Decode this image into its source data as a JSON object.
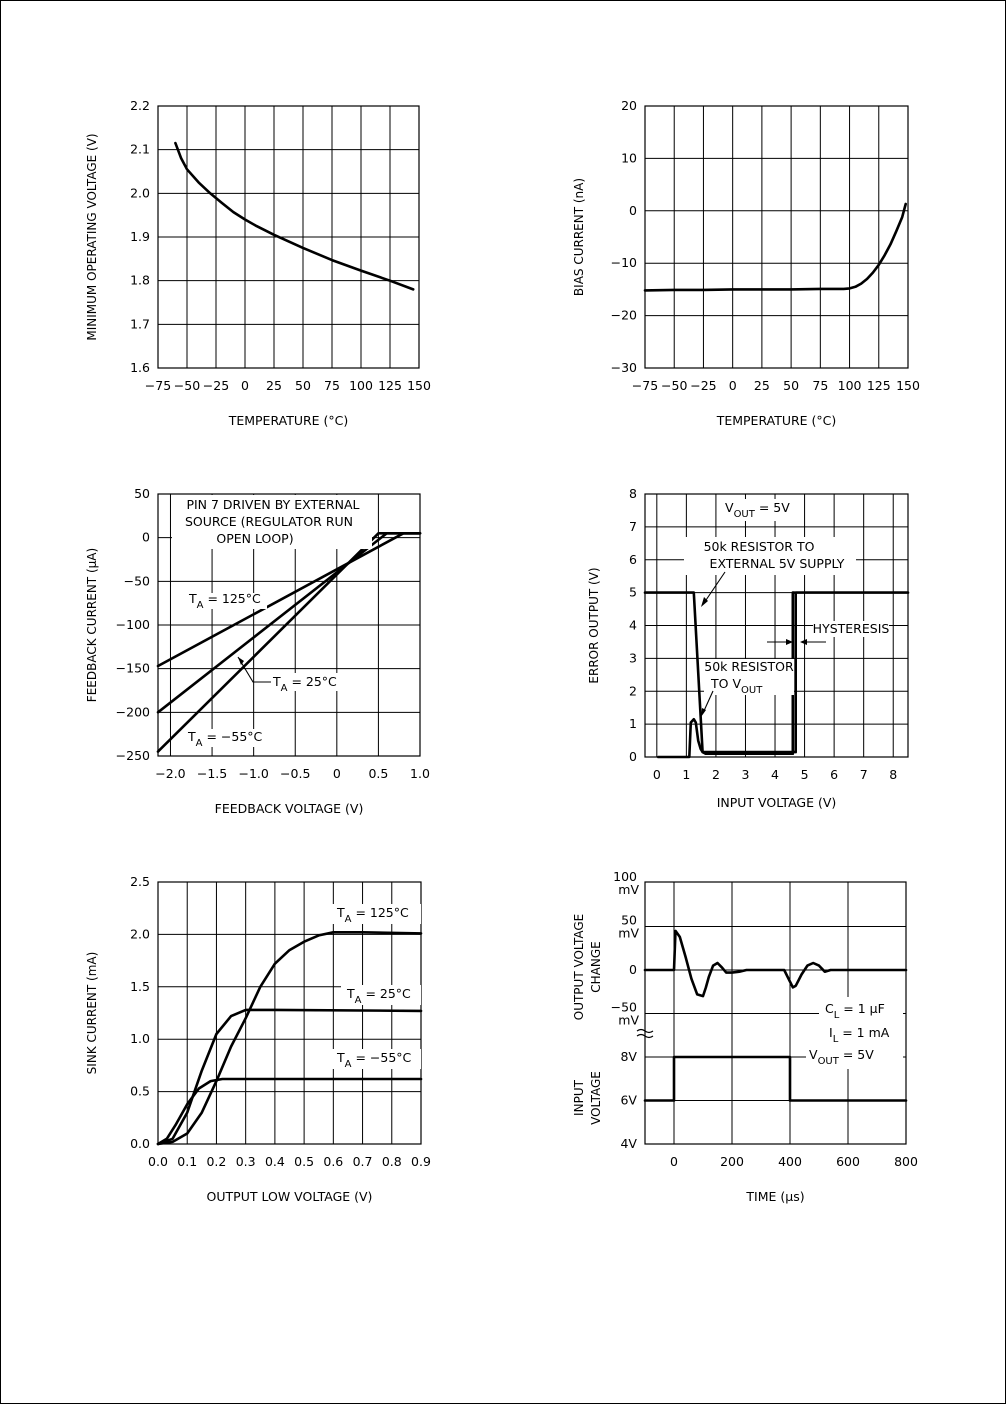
{
  "chart_data": [
    {
      "id": "c1",
      "type": "line",
      "title": "",
      "xlabel": "TEMPERATURE (°C)",
      "ylabel": "MINIMUM OPERATING VOLTAGE (V)",
      "xlim": [
        -75,
        150
      ],
      "ylim": [
        1.6,
        2.2
      ],
      "xticks": [
        -75,
        -50,
        -25,
        0,
        25,
        50,
        75,
        100,
        125,
        150
      ],
      "xtick_labels": [
        "−75",
        "−50",
        "−25",
        "0",
        "25",
        "50",
        "75",
        "100",
        "125",
        "150"
      ],
      "yticks": [
        1.6,
        1.7,
        1.8,
        1.9,
        2.0,
        2.1,
        2.2
      ],
      "ytick_labels": [
        "1.6",
        "1.7",
        "1.8",
        "1.9",
        "2.0",
        "2.1",
        "2.2"
      ],
      "grid": true,
      "series": [
        {
          "x": [
            -60,
            -55,
            -50,
            -40,
            -30,
            -20,
            -10,
            0,
            10,
            25,
            50,
            75,
            100,
            125,
            145
          ],
          "y": [
            2.115,
            2.08,
            2.055,
            2.025,
            2.0,
            1.978,
            1.957,
            1.94,
            1.925,
            1.905,
            1.875,
            1.847,
            1.823,
            1.8,
            1.78
          ]
        }
      ],
      "annotations": []
    },
    {
      "id": "c2",
      "type": "line",
      "title": "",
      "xlabel": "TEMPERATURE (°C)",
      "ylabel": "BIAS CURRENT (nA)",
      "xlim": [
        -75,
        150
      ],
      "ylim": [
        -30,
        20
      ],
      "xticks": [
        -75,
        -50,
        -25,
        0,
        25,
        50,
        75,
        100,
        125,
        150
      ],
      "xtick_labels": [
        "−75",
        "−50",
        "−25",
        "0",
        "25",
        "50",
        "75",
        "100",
        "125",
        "150"
      ],
      "yticks": [
        -30,
        -20,
        -10,
        0,
        10,
        20
      ],
      "ytick_labels": [
        "−30",
        "−20",
        "−10",
        "0",
        "10",
        "20"
      ],
      "grid": true,
      "series": [
        {
          "x": [
            -75,
            -50,
            -25,
            0,
            25,
            50,
            75,
            95,
            100,
            105,
            110,
            115,
            120,
            125,
            130,
            135,
            140,
            145,
            148
          ],
          "y": [
            -15.2,
            -15.1,
            -15.1,
            -15.0,
            -15.0,
            -15.0,
            -14.9,
            -14.9,
            -14.8,
            -14.5,
            -13.9,
            -13.0,
            -11.8,
            -10.3,
            -8.5,
            -6.4,
            -3.9,
            -1.2,
            1.3
          ]
        }
      ],
      "annotations": []
    },
    {
      "id": "c3",
      "type": "line",
      "title": "",
      "xlabel": "FEEDBACK VOLTAGE (V)",
      "ylabel": "FEEDBACK CURRENT (μA)",
      "xlim": [
        -2.15,
        1.0
      ],
      "ylim": [
        -250,
        50
      ],
      "xticks": [
        -2.0,
        -1.5,
        -1.0,
        -0.5,
        0,
        0.5,
        1.0
      ],
      "xtick_labels": [
        "−2.0",
        "−1.5",
        "−1.0",
        "−0.5",
        "0",
        "0.5",
        "1.0"
      ],
      "yticks": [
        -250,
        -200,
        -150,
        -100,
        -50,
        0,
        50
      ],
      "ytick_labels": [
        "−250",
        "−200",
        "−150",
        "−100",
        "−50",
        "0",
        "50"
      ],
      "xgrid": [
        -2.0,
        -1.5,
        -1.0,
        -0.5,
        0,
        0.5,
        1.0
      ],
      "grid": true,
      "series": [
        {
          "label": "T_A = 125°C",
          "x": [
            -2.15,
            0.8,
            1.0
          ],
          "y": [
            -147,
            5,
            5
          ]
        },
        {
          "label": "T_A = 25°C",
          "x": [
            -2.15,
            0.6,
            1.0
          ],
          "y": [
            -200,
            5,
            5
          ]
        },
        {
          "label": "T_A = −55°C",
          "x": [
            -2.15,
            0.5,
            1.0
          ],
          "y": [
            -245,
            5,
            5
          ]
        }
      ],
      "annotations": [
        {
          "lines": [
            "PIN 7 DRIVEN BY EXTERNAL",
            "SOURCE (REGULATOR RUN",
            "OPEN LOOP)"
          ]
        },
        {
          "sub_main": "T",
          "sub": "A",
          "rest": " = 125°C"
        },
        {
          "sub_main": "T",
          "sub": "A",
          "rest": " = 25°C"
        },
        {
          "sub_main": "T",
          "sub": "A",
          "rest": " = −55°C"
        }
      ]
    },
    {
      "id": "c4",
      "type": "line",
      "title": "",
      "xlabel": "INPUT VOLTAGE (V)",
      "ylabel": "ERROR OUTPUT (V)",
      "xlim": [
        -0.4,
        8.5
      ],
      "ylim": [
        0,
        8
      ],
      "xticks": [
        0,
        1,
        2,
        3,
        4,
        5,
        6,
        7,
        8
      ],
      "xtick_labels": [
        "0",
        "1",
        "2",
        "3",
        "4",
        "5",
        "6",
        "7",
        "8"
      ],
      "yticks": [
        0,
        1,
        2,
        3,
        4,
        5,
        6,
        7,
        8
      ],
      "ytick_labels": [
        "0",
        "1",
        "2",
        "3",
        "4",
        "5",
        "6",
        "7",
        "8"
      ],
      "grid": true,
      "series": [
        {
          "label": "50k RESISTOR TO EXTERNAL 5V SUPPLY",
          "x": [
            -0.4,
            1.25,
            1.55,
            1.6,
            4.7,
            4.7,
            8.5
          ],
          "y": [
            5,
            5,
            0.15,
            0.15,
            0.15,
            5,
            5
          ]
        },
        {
          "label": "50k RESISTOR TO V_OUT",
          "x": [
            0.05,
            1.1,
            1.15,
            1.25,
            1.32,
            1.4,
            1.48,
            1.55,
            1.65,
            4.6,
            4.6,
            4.65
          ],
          "y": [
            0,
            0,
            1.05,
            1.15,
            1.05,
            0.5,
            0.25,
            0.15,
            0.1,
            0.1,
            5,
            5
          ]
        }
      ],
      "annotations": [
        {
          "sub_main": "V",
          "sub": "OUT",
          "rest": "  =  5V"
        },
        {
          "lines": [
            "50k RESISTOR TO",
            "EXTERNAL 5V SUPPLY"
          ]
        },
        {
          "text": "HYSTERESIS"
        },
        {
          "text": "50k RESISTOR"
        },
        {
          "sub_main": "TO V",
          "sub": "OUT",
          "rest": ""
        }
      ]
    },
    {
      "id": "c5",
      "type": "line",
      "title": "",
      "xlabel": "OUTPUT LOW VOLTAGE (V)",
      "ylabel": "SINK CURRENT (mA)",
      "xlim": [
        0,
        0.9
      ],
      "ylim": [
        0,
        2.5
      ],
      "xticks": [
        0,
        0.1,
        0.2,
        0.3,
        0.4,
        0.5,
        0.6,
        0.7,
        0.8,
        0.9
      ],
      "xtick_labels": [
        "0.0",
        "0.1",
        "0.2",
        "0.3",
        "0.4",
        "0.5",
        "0.6",
        "0.7",
        "0.8",
        "0.9"
      ],
      "yticks": [
        0,
        0.5,
        1.0,
        1.5,
        2.0,
        2.5
      ],
      "ytick_labels": [
        "0.0",
        "0.5",
        "1.0",
        "1.5",
        "2.0",
        "2.5"
      ],
      "grid": true,
      "series": [
        {
          "label": "T_A = 125°C",
          "x": [
            0,
            0.05,
            0.1,
            0.15,
            0.2,
            0.25,
            0.3,
            0.35,
            0.4,
            0.45,
            0.5,
            0.55,
            0.6,
            0.65,
            0.7,
            0.9
          ],
          "y": [
            0,
            0.02,
            0.1,
            0.3,
            0.6,
            0.93,
            1.2,
            1.5,
            1.72,
            1.85,
            1.93,
            1.99,
            2.02,
            2.02,
            2.02,
            2.01
          ]
        },
        {
          "label": "T_A = 25°C",
          "x": [
            0,
            0.05,
            0.1,
            0.15,
            0.2,
            0.25,
            0.3,
            0.35,
            0.4,
            0.9
          ],
          "y": [
            0,
            0.05,
            0.3,
            0.7,
            1.05,
            1.22,
            1.28,
            1.28,
            1.28,
            1.27
          ]
        },
        {
          "label": "T_A = −55°C",
          "x": [
            0,
            0.03,
            0.06,
            0.1,
            0.14,
            0.18,
            0.22,
            0.26,
            0.3,
            0.9
          ],
          "y": [
            0,
            0.05,
            0.18,
            0.38,
            0.53,
            0.6,
            0.62,
            0.62,
            0.62,
            0.62
          ]
        }
      ],
      "annotations": [
        {
          "sub_main": "T",
          "sub": "A",
          "rest": " = 125°C"
        },
        {
          "sub_main": "T",
          "sub": "A",
          "rest": " = 25°C"
        },
        {
          "sub_main": "T",
          "sub": "A",
          "rest": " = −55°C"
        }
      ]
    },
    {
      "id": "c6",
      "type": "line",
      "title": "",
      "xlabel": "TIME (μs)",
      "ylabel_top": [
        "OUTPUT VOLTAGE",
        "CHANGE"
      ],
      "ylabel_bottom": [
        "INPUT",
        "VOLTAGE"
      ],
      "xlim": [
        -100,
        800
      ],
      "xticks": [
        0,
        200,
        400,
        600,
        800
      ],
      "xtick_labels": [
        "0",
        "200",
        "400",
        "600",
        "800"
      ],
      "top_yticks": [
        100,
        50,
        0,
        -50
      ],
      "top_ytick_labels": [
        [
          "100",
          "mV"
        ],
        [
          "50",
          "mV"
        ],
        [
          "0"
        ],
        [
          "−50",
          "mV"
        ]
      ],
      "bottom_yticks": [
        8,
        6,
        4
      ],
      "bottom_ytick_labels": [
        "8V",
        "6V",
        "4V"
      ],
      "grid": true,
      "series": [
        {
          "name": "output voltage change (mV)",
          "x": [
            -100,
            0,
            5,
            20,
            40,
            60,
            80,
            100,
            110,
            120,
            135,
            150,
            165,
            180,
            200,
            225,
            250,
            300,
            380,
            395,
            410,
            420,
            440,
            460,
            480,
            500,
            520,
            540,
            800
          ],
          "y": [
            0,
            0,
            45,
            38,
            15,
            -10,
            -28,
            -30,
            -20,
            -8,
            5,
            8,
            3,
            -3,
            -3,
            -2,
            0,
            0,
            0,
            -10,
            -20,
            -18,
            -5,
            5,
            8,
            5,
            -2,
            0,
            0
          ]
        },
        {
          "name": "input voltage (V)",
          "x": [
            -100,
            0,
            0,
            400,
            400,
            800
          ],
          "y": [
            6,
            6,
            8,
            8,
            6,
            6
          ]
        }
      ],
      "annotations": [
        {
          "sub_main": "C",
          "sub": "L",
          "rest": " = 1 μF"
        },
        {
          "sub_main": "I",
          "sub": "L",
          "rest": " = 1 mA"
        },
        {
          "sub_main": "V",
          "sub": "OUT",
          "rest": " = 5V"
        }
      ]
    }
  ]
}
